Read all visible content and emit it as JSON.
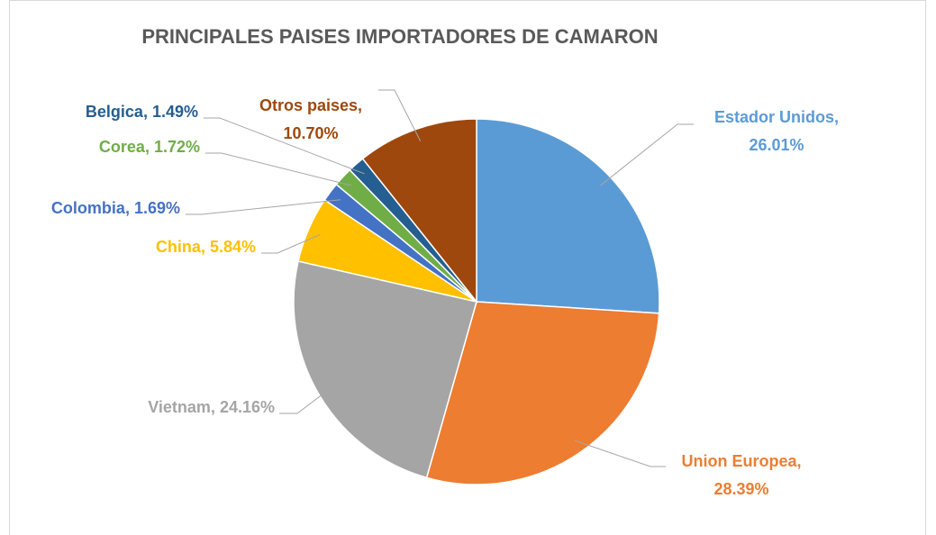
{
  "chart_data": {
    "type": "pie",
    "title": "PRINCIPALES PAISES IMPORTADORES DE CAMARON",
    "categories": [
      "Estador Unidos",
      "Union Europea",
      "Vietnam",
      "China",
      "Colombia",
      "Corea",
      "Belgica",
      "Otros paises"
    ],
    "values": [
      26.01,
      28.39,
      24.16,
      5.84,
      1.69,
      1.72,
      1.49,
      10.7
    ],
    "value_labels": [
      "26.01%",
      "28.39%",
      "24.16%",
      "5.84%",
      "1.69%",
      "1.72%",
      "1.49%",
      "10.70%"
    ],
    "label_separator": ",",
    "colors": [
      "#5b9bd5",
      "#ed7d31",
      "#a5a5a5",
      "#ffc000",
      "#4472c4",
      "#70ad47",
      "#255e91",
      "#9e480e"
    ]
  }
}
